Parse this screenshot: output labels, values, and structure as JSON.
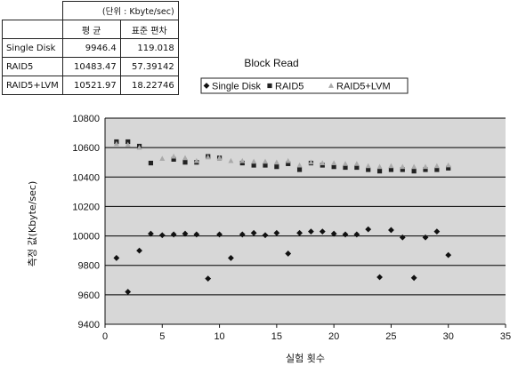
{
  "stats_table": {
    "unit": "(단위 : Kbyte/sec)",
    "headers": [
      "",
      "평 균",
      "표준 편차"
    ],
    "rows": [
      [
        "Single Disk",
        "9946.4",
        "119.018"
      ],
      [
        "RAID5",
        "10483.47",
        "57.39142"
      ],
      [
        "RAID5+LVM",
        "10521.97",
        "18.22746"
      ]
    ]
  },
  "chart_data": {
    "type": "scatter",
    "title": "Block Read",
    "xlabel": "실험 횟수",
    "ylabel": "측정 값(Kbyte/sec)",
    "xlim": [
      0,
      35
    ],
    "ylim": [
      9400,
      10800
    ],
    "xticks": [
      0,
      5,
      10,
      15,
      20,
      25,
      30,
      35
    ],
    "yticks": [
      9400,
      9600,
      9800,
      10000,
      10200,
      10400,
      10600,
      10800
    ],
    "grid": true,
    "legend_position": "top",
    "legend_labels": [
      "Single Disk",
      "RAID5",
      "RAID5+LVM"
    ],
    "series": [
      {
        "name": "Single Disk",
        "marker": "diamond",
        "color": "#111111",
        "points": [
          [
            1,
            9850
          ],
          [
            2,
            9620
          ],
          [
            3,
            9900
          ],
          [
            4,
            10015
          ],
          [
            5,
            10005
          ],
          [
            6,
            10010
          ],
          [
            7,
            10015
          ],
          [
            8,
            10010
          ],
          [
            9,
            9710
          ],
          [
            10,
            10010
          ],
          [
            11,
            9850
          ],
          [
            12,
            10010
          ],
          [
            13,
            10020
          ],
          [
            14,
            10005
          ],
          [
            15,
            10020
          ],
          [
            16,
            9880
          ],
          [
            17,
            10020
          ],
          [
            18,
            10030
          ],
          [
            19,
            10030
          ],
          [
            20,
            10015
          ],
          [
            21,
            10010
          ],
          [
            22,
            10010
          ],
          [
            23,
            10045
          ],
          [
            24,
            9720
          ],
          [
            25,
            10040
          ],
          [
            26,
            9990
          ],
          [
            27,
            9715
          ],
          [
            28,
            9990
          ],
          [
            29,
            10030
          ],
          [
            30,
            9870
          ]
        ]
      },
      {
        "name": "RAID5",
        "marker": "square",
        "color": "#222222",
        "points": [
          [
            1,
            10640
          ],
          [
            2,
            10640
          ],
          [
            3,
            10610
          ],
          [
            4,
            10495
          ],
          [
            6,
            10520
          ],
          [
            7,
            10500
          ],
          [
            8,
            10500
          ],
          [
            9,
            10540
          ],
          [
            10,
            10530
          ],
          [
            12,
            10495
          ],
          [
            13,
            10480
          ],
          [
            14,
            10480
          ],
          [
            15,
            10470
          ],
          [
            16,
            10490
          ],
          [
            17,
            10450
          ],
          [
            18,
            10495
          ],
          [
            19,
            10480
          ],
          [
            20,
            10470
          ],
          [
            21,
            10465
          ],
          [
            22,
            10465
          ],
          [
            23,
            10450
          ],
          [
            24,
            10440
          ],
          [
            25,
            10450
          ],
          [
            26,
            10450
          ],
          [
            27,
            10440
          ],
          [
            28,
            10450
          ],
          [
            29,
            10450
          ],
          [
            30,
            10460
          ]
        ]
      },
      {
        "name": "RAID5+LVM",
        "marker": "triangle",
        "color": "#aaaaaa",
        "points": [
          [
            1,
            10625
          ],
          [
            2,
            10620
          ],
          [
            3,
            10600
          ],
          [
            5,
            10525
          ],
          [
            6,
            10540
          ],
          [
            7,
            10530
          ],
          [
            8,
            10510
          ],
          [
            9,
            10535
          ],
          [
            10,
            10530
          ],
          [
            11,
            10510
          ],
          [
            12,
            10510
          ],
          [
            13,
            10505
          ],
          [
            14,
            10505
          ],
          [
            15,
            10500
          ],
          [
            16,
            10510
          ],
          [
            17,
            10480
          ],
          [
            18,
            10500
          ],
          [
            19,
            10495
          ],
          [
            20,
            10495
          ],
          [
            21,
            10490
          ],
          [
            22,
            10490
          ],
          [
            23,
            10475
          ],
          [
            24,
            10470
          ],
          [
            25,
            10475
          ],
          [
            26,
            10470
          ],
          [
            27,
            10470
          ],
          [
            28,
            10470
          ],
          [
            29,
            10475
          ],
          [
            30,
            10480
          ]
        ]
      }
    ]
  }
}
